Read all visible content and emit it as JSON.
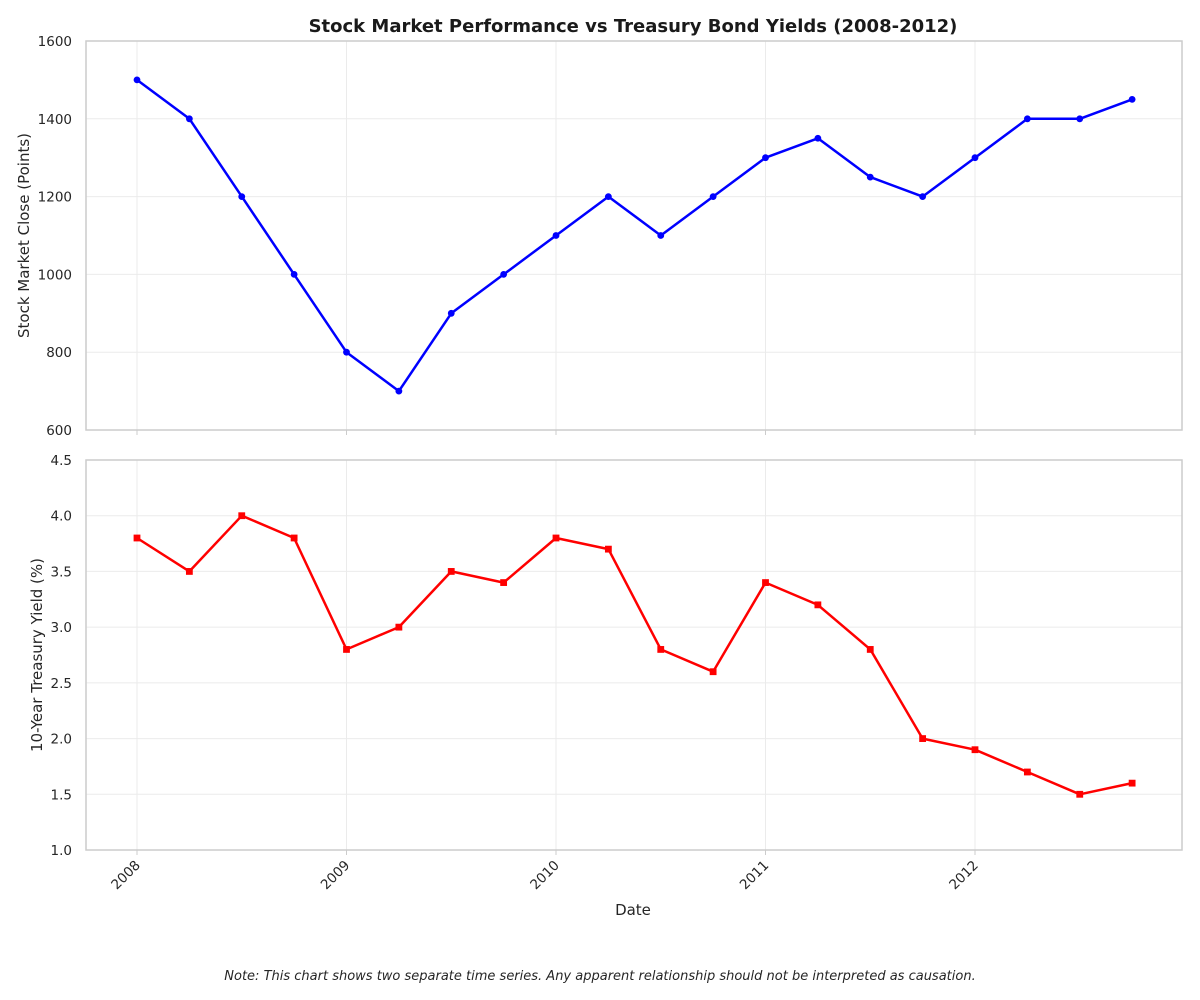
{
  "chart_data": {
    "type": "line",
    "title": "Stock Market Performance vs Treasury Bond Yields (2008-2012)",
    "xlabel": "Date",
    "x_tick_labels": [
      "2008",
      "2009",
      "2010",
      "2011",
      "2012"
    ],
    "x": [
      "2008-01",
      "2008-04",
      "2008-07",
      "2008-10",
      "2009-01",
      "2009-04",
      "2009-07",
      "2009-10",
      "2010-01",
      "2010-04",
      "2010-07",
      "2010-10",
      "2011-01",
      "2011-04",
      "2011-07",
      "2011-10",
      "2012-01",
      "2012-04",
      "2012-07",
      "2012-10"
    ],
    "panels": [
      {
        "ylabel": "Stock Market Close (Points)",
        "ylim": [
          600,
          1600
        ],
        "y_ticks": [
          600,
          800,
          1000,
          1200,
          1400,
          1600
        ],
        "y_tick_labels": [
          "600",
          "800",
          "1000",
          "1200",
          "1400",
          "1600"
        ],
        "color": "#0000ff",
        "marker": "circle",
        "values": [
          1500,
          1400,
          1200,
          1000,
          800,
          700,
          900,
          1000,
          1100,
          1200,
          1100,
          1200,
          1300,
          1350,
          1250,
          1200,
          1300,
          1400,
          1400,
          1450
        ]
      },
      {
        "ylabel": "10-Year Treasury Yield (%)",
        "ylim": [
          1.0,
          4.5
        ],
        "y_ticks": [
          1.0,
          1.5,
          2.0,
          2.5,
          3.0,
          3.5,
          4.0,
          4.5
        ],
        "y_tick_labels": [
          "1.0",
          "1.5",
          "2.0",
          "2.5",
          "3.0",
          "3.5",
          "4.0",
          "4.5"
        ],
        "color": "#ff0000",
        "marker": "square",
        "values": [
          3.8,
          3.5,
          4.0,
          3.8,
          2.8,
          3.0,
          3.5,
          3.4,
          3.8,
          3.7,
          2.8,
          2.6,
          3.4,
          3.2,
          2.8,
          2.0,
          1.9,
          1.7,
          1.5,
          1.6
        ]
      }
    ],
    "grid": true,
    "note": "Note: This chart shows two separate time series. Any apparent relationship should not be interpreted as causation."
  }
}
